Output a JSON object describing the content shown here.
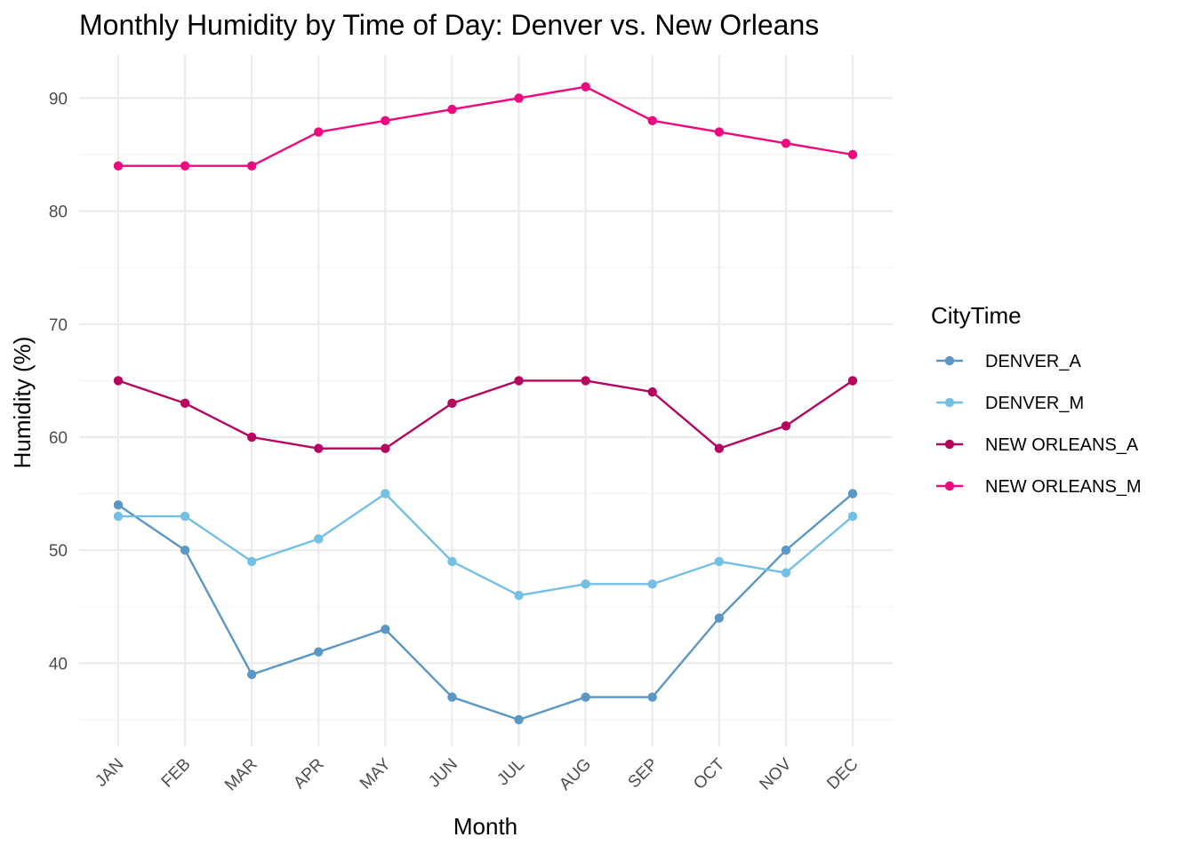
{
  "chart_data": {
    "type": "line",
    "title": "Monthly Humidity by Time of Day: Denver vs. New Orleans",
    "xlabel": "Month",
    "ylabel": "Humidity (%)",
    "categories": [
      "JAN",
      "FEB",
      "MAR",
      "APR",
      "MAY",
      "JUN",
      "JUL",
      "AUG",
      "SEP",
      "OCT",
      "NOV",
      "DEC"
    ],
    "yticks": [
      40,
      50,
      60,
      70,
      80,
      90
    ],
    "ylim": [
      33,
      94
    ],
    "grid": true,
    "legend": {
      "title": "CityTime",
      "placement": "right"
    },
    "series": [
      {
        "name": "DENVER_A",
        "color": "#5b97c4",
        "values": [
          54,
          50,
          39,
          41,
          43,
          37,
          35,
          37,
          37,
          44,
          50,
          55
        ]
      },
      {
        "name": "DENVER_M",
        "color": "#74c0e4",
        "values": [
          53,
          53,
          49,
          51,
          55,
          49,
          46,
          47,
          47,
          49,
          48,
          53
        ]
      },
      {
        "name": "NEW ORLEANS_A",
        "color": "#b5065f",
        "values": [
          65,
          63,
          60,
          59,
          59,
          63,
          65,
          65,
          64,
          59,
          61,
          65
        ]
      },
      {
        "name": "NEW ORLEANS_M",
        "color": "#f0077f",
        "values": [
          84,
          84,
          84,
          87,
          88,
          89,
          90,
          91,
          88,
          87,
          86,
          85
        ]
      }
    ]
  }
}
